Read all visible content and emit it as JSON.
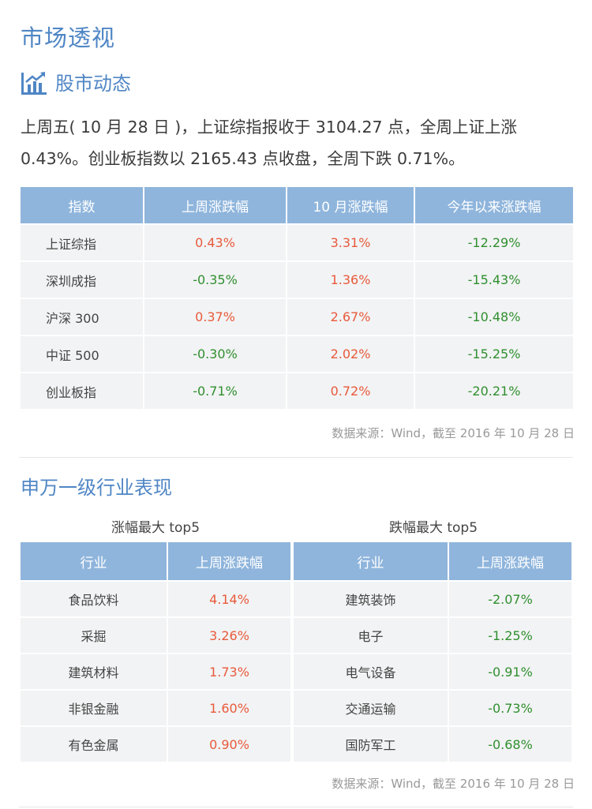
{
  "page": {
    "title": "市场透视"
  },
  "stock_section": {
    "heading": "股市动态",
    "icon": "bar-chart-trend-icon",
    "summary": "上周五( 10 月 28 日 )，上证综指报收于 3104.27 点，全周上证上涨 0.43%。创业板指数以 2165.43 点收盘，全周下跌 0.71%。"
  },
  "index_table": {
    "headers": [
      "指数",
      "上周涨跌幅",
      "10 月涨跌幅",
      "今年以来涨跌幅"
    ],
    "rows": [
      {
        "name": "上证综指",
        "week": "0.43%",
        "month": "3.31%",
        "ytd": "-12.29%"
      },
      {
        "name": "深圳成指",
        "week": "-0.35%",
        "month": "1.36%",
        "ytd": "-15.43%"
      },
      {
        "name": "沪深 300",
        "week": "0.37%",
        "month": "2.67%",
        "ytd": "-10.48%"
      },
      {
        "name": "中证 500",
        "week": "-0.30%",
        "month": "2.02%",
        "ytd": "-15.25%"
      },
      {
        "name": "创业板指",
        "week": "-0.71%",
        "month": "0.72%",
        "ytd": "-20.21%"
      }
    ],
    "source": "数据来源：Wind，截至 2016 年 10 月 28 日"
  },
  "industry_section": {
    "heading": "申万一级行业表现",
    "top": {
      "title": "涨幅最大 top5",
      "headers": [
        "行业",
        "上周涨跌幅"
      ],
      "rows": [
        {
          "name": "食品饮料",
          "change": "4.14%"
        },
        {
          "name": "采掘",
          "change": "3.26%"
        },
        {
          "name": "建筑材料",
          "change": "1.73%"
        },
        {
          "name": "非银金融",
          "change": "1.60%"
        },
        {
          "name": "有色金属",
          "change": "0.90%"
        }
      ]
    },
    "bottom": {
      "title": "跌幅最大 top5",
      "headers": [
        "行业",
        "上周涨跌幅"
      ],
      "rows": [
        {
          "name": "建筑装饰",
          "change": "-2.07%"
        },
        {
          "name": "电子",
          "change": "-1.25%"
        },
        {
          "name": "电气设备",
          "change": "-0.91%"
        },
        {
          "name": "交通运输",
          "change": "-0.73%"
        },
        {
          "name": "国防军工",
          "change": "-0.68%"
        }
      ]
    },
    "source": "数据来源：Wind，截至 2016 年 10 月 28 日"
  },
  "colors": {
    "accent": "#4f86c5",
    "header_bg": "#8fb5dc",
    "cell_bg": "#f2f3f4",
    "positive": "#e85a3c",
    "negative": "#2f8f2f"
  }
}
